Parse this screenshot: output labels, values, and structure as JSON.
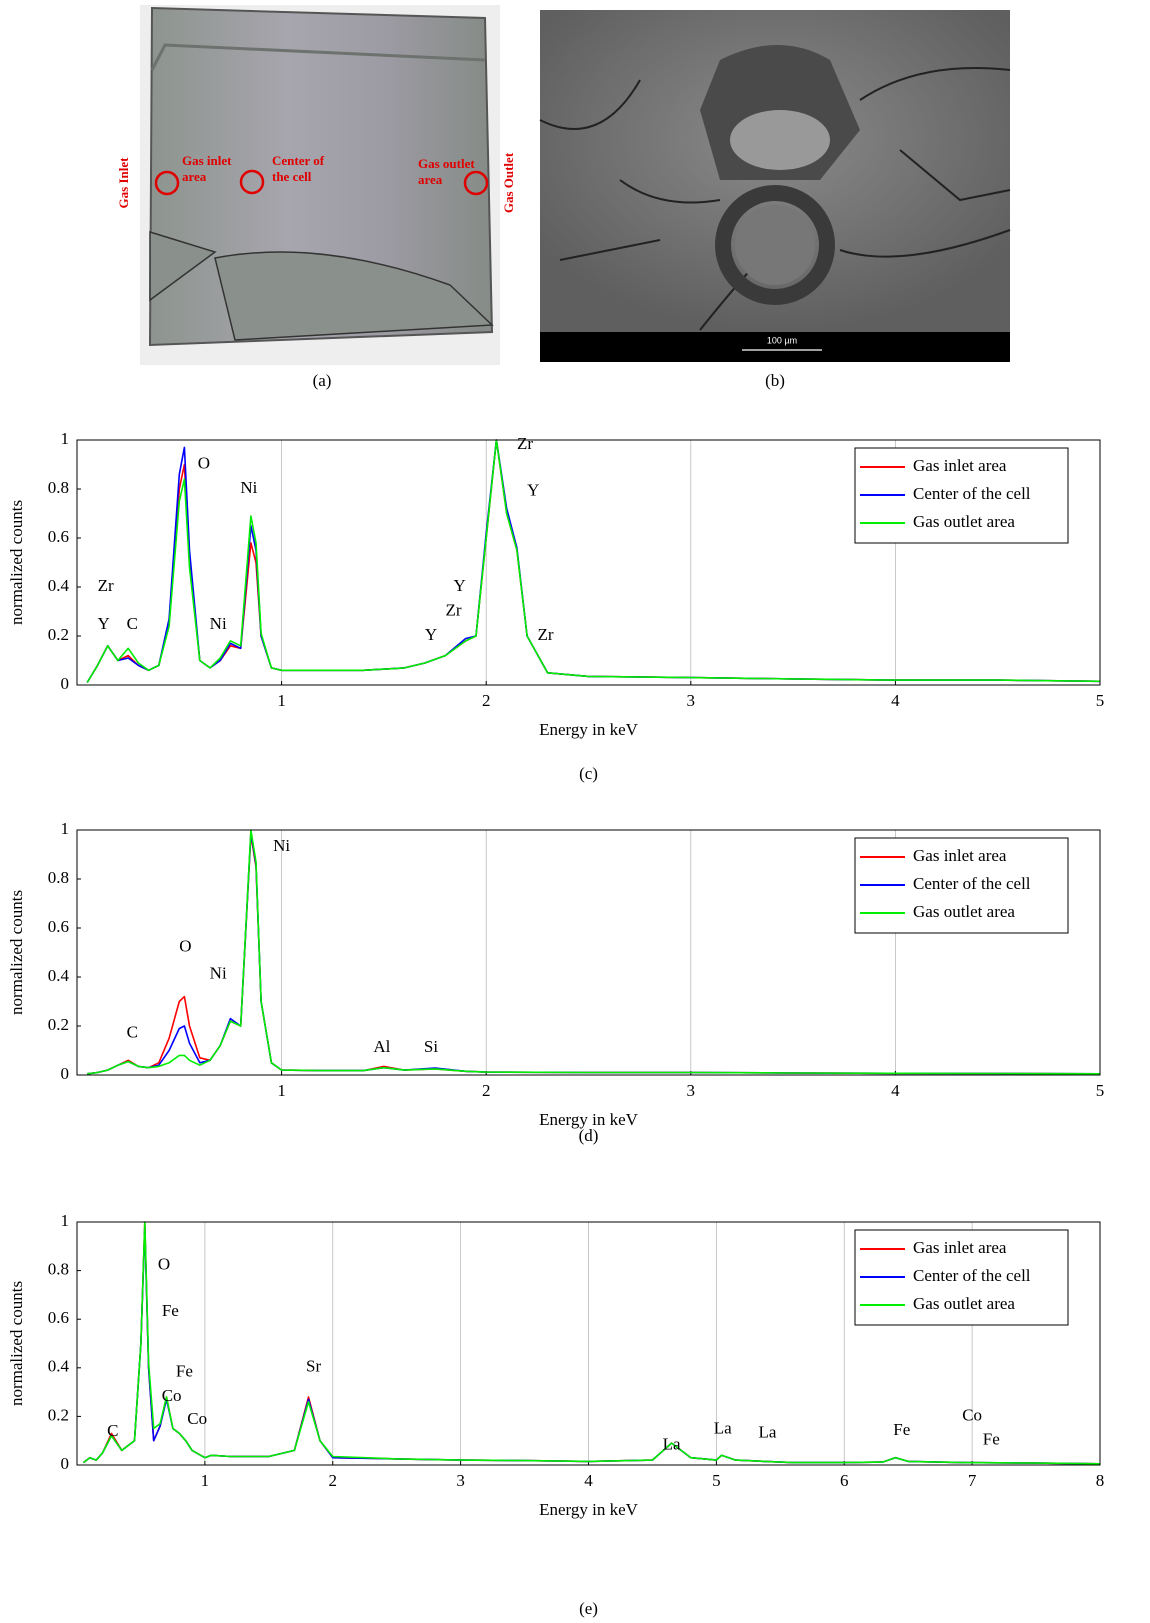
{
  "images": [
    {
      "caption": "(a)",
      "gas_inlet": "Gas Inlet",
      "gas_outlet": "Gas Outlet",
      "gas_inlet_area": [
        "Gas inlet",
        "area"
      ],
      "center_of_cell": [
        "Center of",
        "the cell"
      ],
      "gas_outlet_area": [
        "Gas outlet",
        "area"
      ]
    },
    {
      "caption": "(b)",
      "scale_bar": "100 µm"
    }
  ],
  "chart_data": [
    {
      "type": "line",
      "caption": "(c)",
      "xlabel": "Energy in keV",
      "ylabel": "normalized counts",
      "xlim": [
        0,
        5
      ],
      "ylim": [
        0,
        1
      ],
      "xticks": [
        1,
        2,
        3,
        4,
        5
      ],
      "yticks": [
        0,
        0.2,
        0.4,
        0.6,
        0.8,
        1
      ],
      "grid": "x",
      "legend": "upper right",
      "annotations": [
        "O",
        "Ni",
        "Zr",
        "Y",
        "C",
        "Ni",
        "Y",
        "Y",
        "Zr",
        "Zr",
        "Y",
        "Zr"
      ],
      "x": [
        0.05,
        0.1,
        0.15,
        0.2,
        0.25,
        0.3,
        0.35,
        0.4,
        0.45,
        0.5,
        0.525,
        0.55,
        0.6,
        0.65,
        0.7,
        0.75,
        0.8,
        0.85,
        0.875,
        0.9,
        0.95,
        1.0,
        1.2,
        1.4,
        1.6,
        1.7,
        1.8,
        1.9,
        1.95,
        2.0,
        2.05,
        2.1,
        2.15,
        2.2,
        2.3,
        2.5,
        3,
        3.5,
        4,
        4.5,
        5
      ],
      "series": [
        {
          "name": "Gas inlet area",
          "color": "#ff0000",
          "values": [
            0.01,
            0.08,
            0.16,
            0.1,
            0.12,
            0.08,
            0.06,
            0.08,
            0.25,
            0.8,
            0.9,
            0.5,
            0.1,
            0.07,
            0.1,
            0.16,
            0.15,
            0.58,
            0.5,
            0.2,
            0.07,
            0.06,
            0.06,
            0.06,
            0.07,
            0.09,
            0.12,
            0.18,
            0.2,
            0.6,
            1.0,
            0.7,
            0.55,
            0.2,
            0.05,
            0.035,
            0.03,
            0.025,
            0.02,
            0.02,
            0.015
          ]
        },
        {
          "name": "Center of the cell",
          "color": "#0000ff",
          "values": [
            0.01,
            0.08,
            0.16,
            0.1,
            0.11,
            0.08,
            0.06,
            0.08,
            0.27,
            0.86,
            0.97,
            0.55,
            0.1,
            0.07,
            0.1,
            0.17,
            0.15,
            0.65,
            0.55,
            0.2,
            0.07,
            0.06,
            0.06,
            0.06,
            0.07,
            0.09,
            0.12,
            0.19,
            0.2,
            0.62,
            1.0,
            0.72,
            0.56,
            0.2,
            0.05,
            0.035,
            0.03,
            0.025,
            0.02,
            0.02,
            0.015
          ]
        },
        {
          "name": "Gas outlet area",
          "color": "#00ee00",
          "values": [
            0.01,
            0.08,
            0.16,
            0.1,
            0.15,
            0.09,
            0.06,
            0.08,
            0.24,
            0.75,
            0.84,
            0.48,
            0.1,
            0.07,
            0.11,
            0.18,
            0.16,
            0.69,
            0.58,
            0.21,
            0.07,
            0.06,
            0.06,
            0.06,
            0.07,
            0.09,
            0.12,
            0.18,
            0.2,
            0.6,
            1.0,
            0.7,
            0.55,
            0.2,
            0.05,
            0.035,
            0.03,
            0.025,
            0.02,
            0.02,
            0.015
          ]
        }
      ]
    },
    {
      "type": "line",
      "caption": "(d)",
      "xlabel": "Energy in keV",
      "ylabel": "normalized counts",
      "xlim": [
        0,
        5
      ],
      "ylim": [
        0,
        1
      ],
      "xticks": [
        1,
        2,
        3,
        4,
        5
      ],
      "yticks": [
        0,
        0.2,
        0.4,
        0.6,
        0.8,
        1
      ],
      "grid": "x",
      "legend": "upper right",
      "annotations": [
        "Ni",
        "O",
        "Ni",
        "C",
        "Al",
        "Si"
      ],
      "x": [
        0.05,
        0.1,
        0.15,
        0.2,
        0.25,
        0.3,
        0.35,
        0.4,
        0.45,
        0.5,
        0.525,
        0.55,
        0.6,
        0.65,
        0.7,
        0.75,
        0.8,
        0.85,
        0.875,
        0.9,
        0.95,
        1.0,
        1.2,
        1.4,
        1.5,
        1.6,
        1.75,
        1.9,
        2,
        2.5,
        3,
        3.5,
        4,
        4.5,
        5
      ],
      "series": [
        {
          "name": "Gas inlet area",
          "color": "#ff0000",
          "values": [
            0.005,
            0.01,
            0.02,
            0.04,
            0.06,
            0.035,
            0.03,
            0.05,
            0.15,
            0.3,
            0.32,
            0.2,
            0.07,
            0.06,
            0.12,
            0.22,
            0.2,
            0.98,
            0.85,
            0.3,
            0.05,
            0.02,
            0.018,
            0.018,
            0.035,
            0.02,
            0.025,
            0.015,
            0.012,
            0.01,
            0.01,
            0.008,
            0.007,
            0.006,
            0.005
          ]
        },
        {
          "name": "Center of the cell",
          "color": "#0000ff",
          "values": [
            0.005,
            0.01,
            0.02,
            0.04,
            0.055,
            0.035,
            0.03,
            0.04,
            0.1,
            0.19,
            0.2,
            0.13,
            0.05,
            0.06,
            0.12,
            0.23,
            0.2,
            0.99,
            0.86,
            0.3,
            0.05,
            0.02,
            0.018,
            0.018,
            0.03,
            0.02,
            0.028,
            0.015,
            0.012,
            0.01,
            0.01,
            0.008,
            0.007,
            0.006,
            0.005
          ]
        },
        {
          "name": "Gas outlet area",
          "color": "#00ee00",
          "values": [
            0.005,
            0.01,
            0.02,
            0.04,
            0.055,
            0.035,
            0.03,
            0.035,
            0.05,
            0.08,
            0.08,
            0.06,
            0.04,
            0.06,
            0.12,
            0.22,
            0.2,
            1.0,
            0.87,
            0.3,
            0.05,
            0.02,
            0.018,
            0.018,
            0.03,
            0.02,
            0.025,
            0.015,
            0.012,
            0.01,
            0.01,
            0.008,
            0.007,
            0.006,
            0.005
          ]
        }
      ]
    },
    {
      "type": "line",
      "caption": "(e)",
      "xlabel": "Energy in keV",
      "ylabel": "normalized counts",
      "xlim": [
        0,
        8
      ],
      "ylim": [
        0,
        1
      ],
      "xticks": [
        1,
        2,
        3,
        4,
        5,
        6,
        7,
        8
      ],
      "yticks": [
        0,
        0.2,
        0.4,
        0.6,
        0.8,
        1
      ],
      "grid": "x",
      "legend": "upper right",
      "annotations": [
        "O",
        "Fe",
        "Fe",
        "Co",
        "Co",
        "C",
        "Sr",
        "La",
        "La",
        "La",
        "Fe",
        "Co",
        "Fe"
      ],
      "x": [
        0.05,
        0.1,
        0.15,
        0.2,
        0.27,
        0.35,
        0.45,
        0.5,
        0.53,
        0.56,
        0.6,
        0.65,
        0.7,
        0.75,
        0.8,
        0.85,
        0.9,
        1.0,
        1.05,
        1.2,
        1.5,
        1.7,
        1.81,
        1.9,
        2.0,
        2.5,
        3,
        3.5,
        4,
        4.5,
        4.65,
        4.8,
        5.0,
        5.04,
        5.15,
        5.38,
        5.6,
        6,
        6.3,
        6.4,
        6.5,
        6.93,
        7.5,
        8
      ],
      "series": [
        {
          "name": "Gas inlet area",
          "color": "#ff0000",
          "values": [
            0.01,
            0.03,
            0.02,
            0.05,
            0.13,
            0.06,
            0.1,
            0.5,
            1.0,
            0.4,
            0.1,
            0.16,
            0.28,
            0.15,
            0.13,
            0.1,
            0.06,
            0.03,
            0.04,
            0.035,
            0.035,
            0.06,
            0.28,
            0.1,
            0.03,
            0.025,
            0.02,
            0.018,
            0.015,
            0.02,
            0.09,
            0.03,
            0.02,
            0.04,
            0.02,
            0.015,
            0.01,
            0.01,
            0.012,
            0.03,
            0.015,
            0.01,
            0.008,
            0.005
          ]
        },
        {
          "name": "Center of the cell",
          "color": "#0000ff",
          "values": [
            0.01,
            0.03,
            0.02,
            0.05,
            0.12,
            0.06,
            0.1,
            0.5,
            0.98,
            0.4,
            0.1,
            0.16,
            0.27,
            0.15,
            0.13,
            0.1,
            0.06,
            0.03,
            0.04,
            0.035,
            0.035,
            0.06,
            0.27,
            0.1,
            0.03,
            0.025,
            0.02,
            0.018,
            0.015,
            0.02,
            0.09,
            0.03,
            0.02,
            0.04,
            0.02,
            0.015,
            0.01,
            0.01,
            0.012,
            0.03,
            0.015,
            0.01,
            0.008,
            0.005
          ]
        },
        {
          "name": "Gas outlet area",
          "color": "#00ee00",
          "values": [
            0.01,
            0.03,
            0.02,
            0.05,
            0.12,
            0.06,
            0.1,
            0.5,
            1.0,
            0.42,
            0.15,
            0.17,
            0.28,
            0.15,
            0.13,
            0.1,
            0.06,
            0.03,
            0.04,
            0.035,
            0.035,
            0.06,
            0.26,
            0.1,
            0.035,
            0.025,
            0.02,
            0.018,
            0.015,
            0.02,
            0.09,
            0.03,
            0.02,
            0.04,
            0.02,
            0.015,
            0.01,
            0.01,
            0.012,
            0.03,
            0.015,
            0.01,
            0.008,
            0.005
          ]
        }
      ]
    }
  ]
}
